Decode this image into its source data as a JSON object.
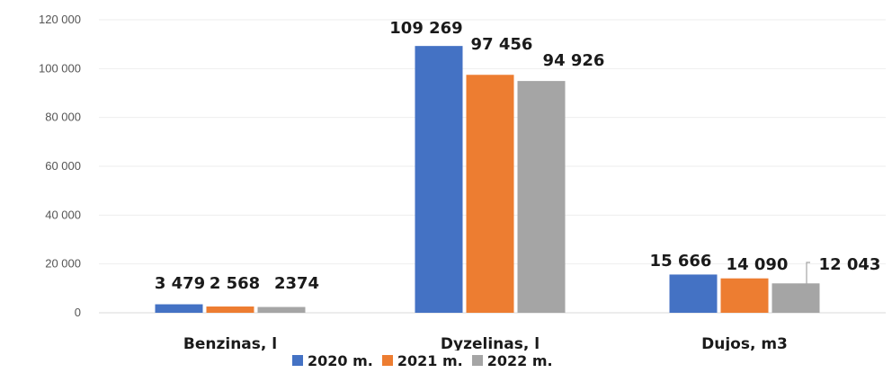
{
  "chart_data": {
    "type": "bar",
    "categories": [
      "Benzinas, l",
      "Dyzelinas, l",
      "Dujos, m3"
    ],
    "series": [
      {
        "name": "2020 m.",
        "color": "#4472c4",
        "values": [
          3479,
          109269,
          15666
        ],
        "labels": [
          "3 479",
          "109 269",
          "15 666"
        ]
      },
      {
        "name": "2021 m.",
        "color": "#ed7d31",
        "values": [
          2568,
          97456,
          14090
        ],
        "labels": [
          "2 568",
          "97 456",
          "14 090"
        ]
      },
      {
        "name": "2022 m.",
        "color": "#a5a5a5",
        "values": [
          2374,
          94926,
          12043
        ],
        "labels": [
          "2374",
          "94 926",
          "12 043"
        ]
      }
    ],
    "yticks": [
      "0",
      "20 000",
      "40 000",
      "60 000",
      "80 000",
      "100 000",
      "120 000"
    ],
    "ylim": [
      0,
      120000
    ],
    "grid": true,
    "legend": "bottom",
    "title": "",
    "xlabel": "",
    "ylabel": ""
  }
}
